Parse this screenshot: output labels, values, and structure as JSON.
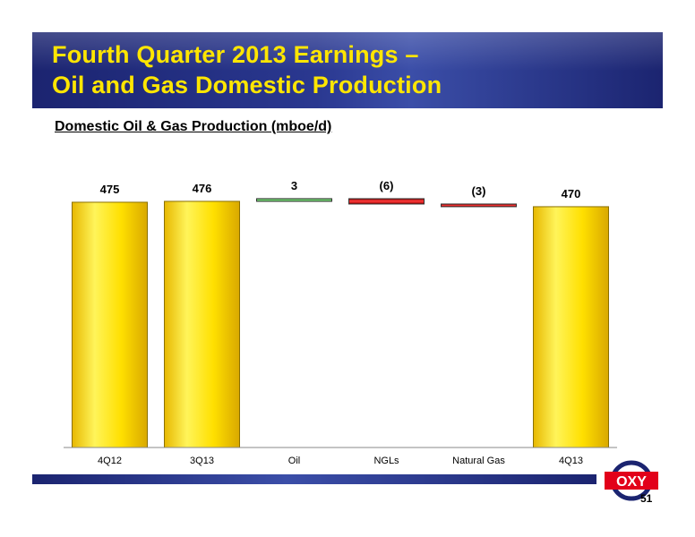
{
  "title": {
    "line1": "Fourth Quarter 2013 Earnings –",
    "line2": "Oil and Gas Domestic Production"
  },
  "subtitle": "Domestic Oil & Gas Production (mboe/d)",
  "page_number": "51",
  "logo": {
    "text": "OXY",
    "icon": "oxy-logo-icon"
  },
  "colors": {
    "banner": "#1b2470",
    "title_text": "#ffe600",
    "bar_total": "#ffe000",
    "bar_increase": "#1aa81a",
    "bar_decrease": "#d40000",
    "logo_red": "#e2001a"
  },
  "chart_data": {
    "type": "bar",
    "subtype": "waterfall",
    "title": "Domestic Oil & Gas Production (mboe/d)",
    "categories": [
      "4Q12",
      "3Q13",
      "Oil",
      "NGLs",
      "Natural Gas",
      "4Q13"
    ],
    "values": [
      475,
      476,
      3,
      -6,
      -3,
      470
    ],
    "bar_kinds": [
      "total",
      "total",
      "change",
      "change",
      "change",
      "total"
    ],
    "data_labels": [
      "475",
      "476",
      "3",
      "(6)",
      "(3)",
      "470"
    ],
    "xlabel": "",
    "ylabel": "",
    "grid": false,
    "legend": "none"
  }
}
